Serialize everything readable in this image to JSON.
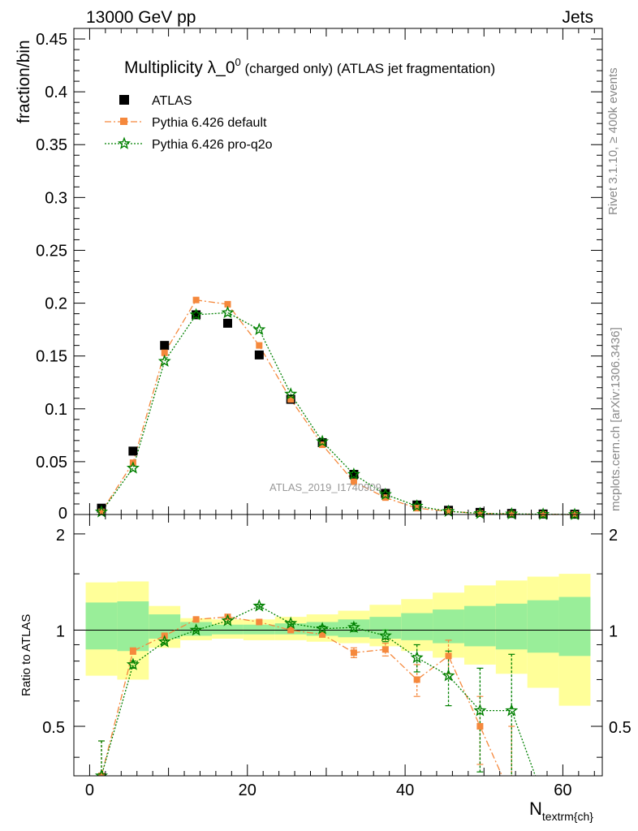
{
  "header": {
    "left_label": "13000 GeV pp",
    "right_label": "Jets"
  },
  "side_labels": {
    "rivet": "Rivet 3.1.10, ≥ 400k events",
    "mcplots": "mcplots.cern.ch [arXiv:1306.3436]"
  },
  "watermark": "ATLAS_2019_I1740909",
  "colors": {
    "atlas": "#000000",
    "default": "#f5883c",
    "proq2o": "#008000",
    "band_inner": "#99ee99",
    "band_outer": "#ffff99"
  },
  "chart_data": [
    {
      "panel": "main",
      "type": "scatter",
      "title_main": "Multiplicity λ_0",
      "title_sup": "0",
      "title_rest": " (charged only) (ATLAS jet fragmentation)",
      "ylabel": "fraction/bin",
      "xlim": [
        -2,
        65
      ],
      "ylim": [
        0,
        0.46
      ],
      "yticks": [
        0.05,
        0.1,
        0.15,
        0.2,
        0.25,
        0.3,
        0.35,
        0.4,
        0.45
      ],
      "ytick_labels": [
        "0.05",
        "0.1",
        "0.15",
        "0.2",
        "0.25",
        "0.3",
        "0.35",
        "0.4",
        "0.45"
      ],
      "y_zero_label": "0",
      "legend": [
        "ATLAS",
        "Pythia 6.426 default",
        "Pythia 6.426 pro-q2o"
      ],
      "x": [
        1.5,
        5.5,
        9.5,
        13.5,
        17.5,
        21.5,
        25.5,
        29.5,
        33.5,
        37.5,
        41.5,
        45.5,
        49.5,
        53.5,
        57.5,
        61.5
      ],
      "series": [
        {
          "name": "ATLAS",
          "values": [
            0.006,
            0.06,
            0.16,
            0.189,
            0.181,
            0.151,
            0.109,
            0.068,
            0.038,
            0.02,
            0.009,
            0.004,
            0.002,
            0.001,
            0.0005,
            0.0003
          ]
        },
        {
          "name": "Pythia 6.426 default",
          "values": [
            0.0025,
            0.049,
            0.153,
            0.203,
            0.199,
            0.16,
            0.109,
            0.066,
            0.031,
            0.016,
            0.006,
            0.003,
            0.001,
            0.0004,
            0.0001,
            0.0
          ]
        },
        {
          "name": "Pythia 6.426 pro-q2o",
          "values": [
            0.0025,
            0.044,
            0.145,
            0.189,
            0.191,
            0.175,
            0.114,
            0.069,
            0.038,
            0.019,
            0.008,
            0.003,
            0.001,
            0.0006,
            0.0002,
            0.0
          ]
        }
      ]
    },
    {
      "panel": "ratio",
      "type": "line",
      "ylabel": "Ratio to ATLAS",
      "xlabel_main": "N",
      "xlabel_sub": "textrm{ch}",
      "xlim": [
        -2,
        65
      ],
      "ylim": [
        0.35,
        2.3
      ],
      "yticks": [
        0.5,
        1,
        2
      ],
      "ytick_labels": [
        "0.5",
        "1",
        "2"
      ],
      "xticks": [
        0,
        20,
        40,
        60
      ],
      "xtick_labels": [
        "0",
        "20",
        "40",
        "60"
      ],
      "bins": [
        [
          -0.5,
          3.5
        ],
        [
          3.5,
          7.5
        ],
        [
          7.5,
          11.5
        ],
        [
          11.5,
          15.5
        ],
        [
          15.5,
          19.5
        ],
        [
          19.5,
          23.5
        ],
        [
          23.5,
          27.5
        ],
        [
          27.5,
          31.5
        ],
        [
          31.5,
          35.5
        ],
        [
          35.5,
          39.5
        ],
        [
          39.5,
          43.5
        ],
        [
          43.5,
          47.5
        ],
        [
          47.5,
          51.5
        ],
        [
          51.5,
          55.5
        ],
        [
          55.5,
          59.5
        ],
        [
          59.5,
          63.5
        ]
      ],
      "band_inner": [
        [
          0.87,
          1.22
        ],
        [
          0.86,
          1.23
        ],
        [
          0.94,
          1.12
        ],
        [
          0.96,
          1.06
        ],
        [
          0.97,
          1.04
        ],
        [
          0.97,
          1.04
        ],
        [
          0.97,
          1.05
        ],
        [
          0.96,
          1.06
        ],
        [
          0.95,
          1.08
        ],
        [
          0.94,
          1.1
        ],
        [
          0.93,
          1.13
        ],
        [
          0.91,
          1.16
        ],
        [
          0.89,
          1.19
        ],
        [
          0.87,
          1.21
        ],
        [
          0.85,
          1.24
        ],
        [
          0.83,
          1.27
        ]
      ],
      "band_outer": [
        [
          0.72,
          1.41
        ],
        [
          0.7,
          1.42
        ],
        [
          0.88,
          1.19
        ],
        [
          0.93,
          1.09
        ],
        [
          0.94,
          1.08
        ],
        [
          0.93,
          1.08
        ],
        [
          0.93,
          1.1
        ],
        [
          0.92,
          1.12
        ],
        [
          0.91,
          1.15
        ],
        [
          0.89,
          1.2
        ],
        [
          0.86,
          1.25
        ],
        [
          0.82,
          1.31
        ],
        [
          0.78,
          1.38
        ],
        [
          0.73,
          1.43
        ],
        [
          0.66,
          1.47
        ],
        [
          0.58,
          1.5
        ]
      ],
      "x": [
        1.5,
        5.5,
        9.5,
        13.5,
        17.5,
        21.5,
        25.5,
        29.5,
        33.5,
        37.5,
        41.5,
        45.5,
        49.5,
        53.5,
        57.5
      ],
      "series": [
        {
          "name": "Pythia 6.426 default",
          "values": [
            0.35,
            0.86,
            0.96,
            1.08,
            1.1,
            1.06,
            1.0,
            0.97,
            0.85,
            0.87,
            0.7,
            0.83,
            0.5,
            0.3,
            null
          ],
          "errors": [
            0.1,
            0.02,
            0.01,
            0.01,
            0.01,
            0.01,
            0.01,
            0.02,
            0.03,
            0.04,
            0.08,
            0.1,
            0.12,
            0.2,
            null
          ]
        },
        {
          "name": "Pythia 6.426 pro-q2o",
          "values": [
            0.35,
            0.78,
            0.92,
            1.0,
            1.07,
            1.19,
            1.05,
            1.01,
            1.02,
            0.96,
            0.82,
            0.72,
            0.56,
            0.56,
            0.3
          ],
          "errors": [
            0.1,
            0.02,
            0.01,
            0.01,
            0.01,
            0.01,
            0.01,
            0.02,
            0.03,
            0.04,
            0.08,
            0.14,
            0.2,
            0.28,
            null
          ]
        }
      ]
    }
  ]
}
